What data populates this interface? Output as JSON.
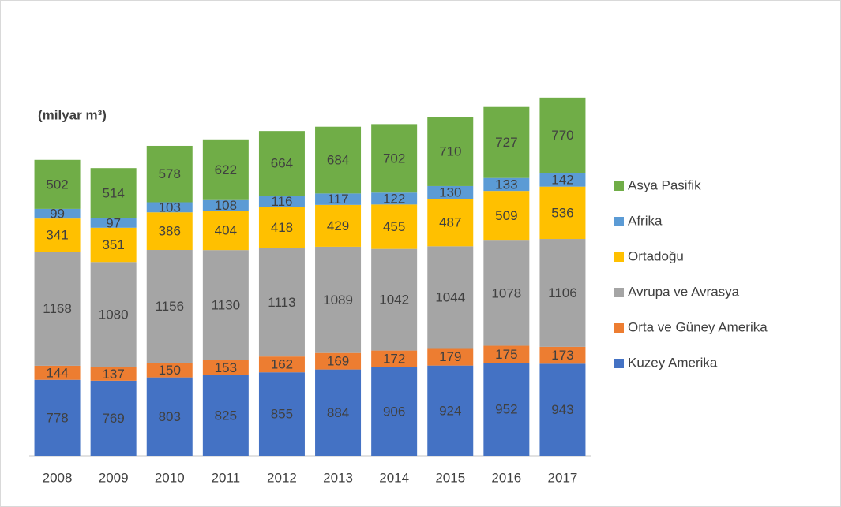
{
  "chart_data": {
    "type": "stacked_bar",
    "y_label": "(milyar m³)",
    "categories": [
      "2008",
      "2009",
      "2010",
      "2011",
      "2012",
      "2013",
      "2014",
      "2015",
      "2016",
      "2017"
    ],
    "series": [
      {
        "name": "Kuzey Amerika",
        "color": "#4472c4",
        "values": [
          778,
          769,
          803,
          825,
          855,
          884,
          906,
          924,
          952,
          943
        ]
      },
      {
        "name": "Orta ve Güney Amerika",
        "color": "#ed7d31",
        "values": [
          144,
          137,
          150,
          153,
          162,
          169,
          172,
          179,
          175,
          173
        ]
      },
      {
        "name": "Avrupa ve Avrasya",
        "color": "#a5a5a5",
        "values": [
          1168,
          1080,
          1156,
          1130,
          1113,
          1089,
          1042,
          1044,
          1078,
          1106
        ]
      },
      {
        "name": "Ortadoğu",
        "color": "#ffc000",
        "values": [
          341,
          351,
          386,
          404,
          418,
          429,
          455,
          487,
          509,
          536
        ]
      },
      {
        "name": "Afrika",
        "color": "#5b9bd5",
        "values": [
          99,
          97,
          103,
          108,
          116,
          117,
          122,
          130,
          133,
          142
        ]
      },
      {
        "name": "Asya Pasifik",
        "color": "#70ad47",
        "values": [
          502,
          514,
          578,
          622,
          664,
          684,
          702,
          710,
          727,
          770
        ]
      }
    ],
    "ylim": [
      0,
      4000
    ],
    "legend": "right"
  }
}
